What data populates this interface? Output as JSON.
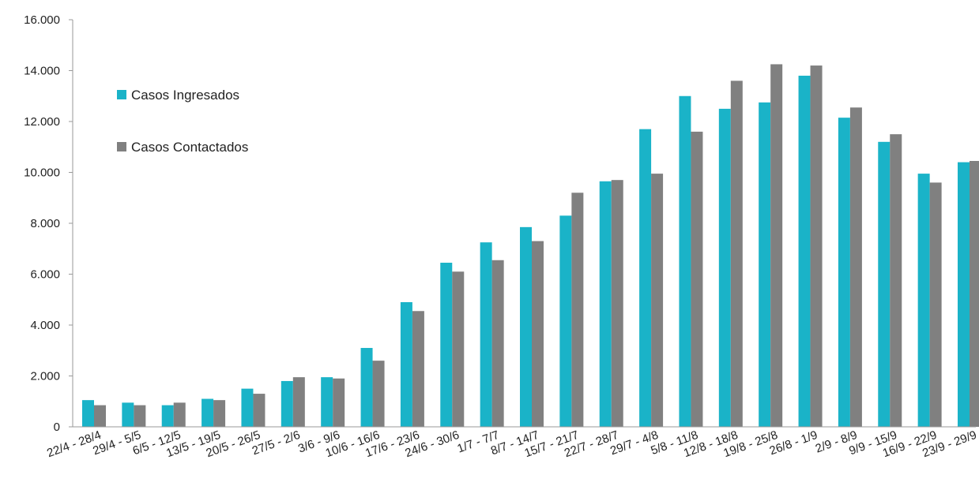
{
  "chart_data": {
    "type": "bar",
    "title": "",
    "xlabel": "",
    "ylabel": "",
    "ylim": [
      0,
      16000
    ],
    "yticks": [
      0,
      2000,
      4000,
      6000,
      8000,
      10000,
      12000,
      14000,
      16000
    ],
    "ytick_labels": [
      "0",
      "2.000",
      "4.000",
      "6.000",
      "8.000",
      "10.000",
      "12.000",
      "14.000",
      "16.000"
    ],
    "grid": false,
    "legend_position": "top-left",
    "categories": [
      "22/4 - 28/4",
      "29/4 - 5/5",
      "6/5 - 12/5",
      "13/5 - 19/5",
      "20/5 - 26/5",
      "27/5 - 2/6",
      "3/6 - 9/6",
      "10/6 - 16/6",
      "17/6 - 23/6",
      "24/6 - 30/6",
      "1/7 - 7/7",
      "8/7 - 14/7",
      "15/7 - 21/7",
      "22/7 - 28/7",
      "29/7 - 4/8",
      "5/8 - 11/8",
      "12/8 - 18/8",
      "19/8 - 25/8",
      "26/8 - 1/9",
      "2/9 - 8/9",
      "9/9 - 15/9",
      "16/9 - 22/9",
      "23/9 - 29/9"
    ],
    "series": [
      {
        "name": "Casos Ingresados",
        "color": "#1ab3c8",
        "values": [
          1050,
          950,
          850,
          1100,
          1500,
          1800,
          1950,
          3100,
          4900,
          6450,
          7250,
          7850,
          8300,
          9650,
          11700,
          13000,
          12500,
          12750,
          13800,
          12150,
          11200,
          9950,
          10400
        ]
      },
      {
        "name": "Casos Contactados",
        "color": "#808080",
        "values": [
          850,
          850,
          950,
          1050,
          1300,
          1950,
          1900,
          2600,
          4550,
          6100,
          6550,
          7300,
          9200,
          9700,
          9950,
          11600,
          13600,
          14250,
          14200,
          12550,
          11500,
          9600,
          10450
        ]
      }
    ]
  }
}
